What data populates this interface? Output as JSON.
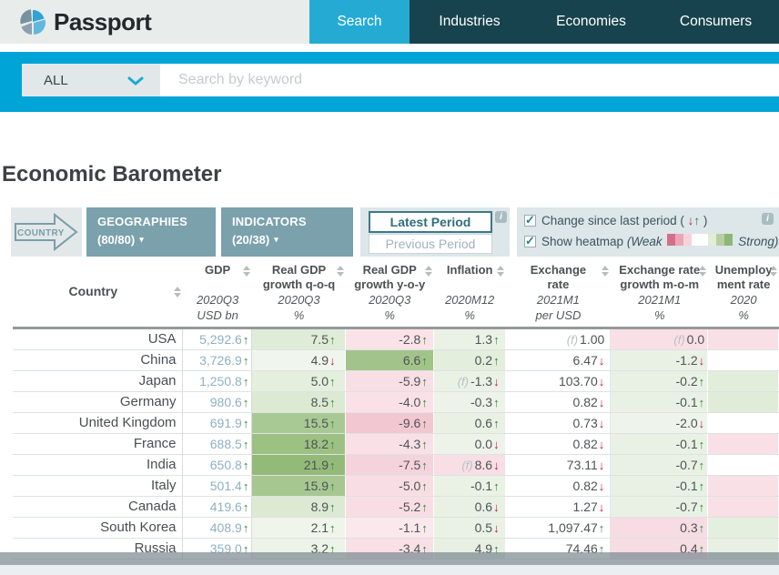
{
  "brand": {
    "name": "Passport"
  },
  "nav": {
    "tabs": [
      {
        "label": "Search",
        "active": true
      },
      {
        "label": "Industries",
        "active": false
      },
      {
        "label": "Economies",
        "active": false
      },
      {
        "label": "Consumers",
        "active": false
      }
    ]
  },
  "search": {
    "filter_value": "ALL",
    "placeholder": "Search by keyword"
  },
  "page": {
    "title": "Economic Barometer"
  },
  "controls": {
    "country_flow_label": "COUNTRY",
    "geographies_label": "GEOGRAPHIES",
    "geographies_count": "(80/80)",
    "indicators_label": "INDICATORS",
    "indicators_count": "(20/38)",
    "latest_period_label": "Latest Period",
    "previous_period_label": "Previous Period",
    "selected_period": "Latest Period",
    "change_checkbox": {
      "checked": true,
      "label": "Change since last period (",
      "suffix": ")"
    },
    "heatmap_checkbox": {
      "checked": true,
      "label": "Show heatmap",
      "weak": "(Weak",
      "strong": "Strong)"
    },
    "heatmap_legend_colors": [
      "#d76e88",
      "#eaa6b6",
      "#f6d3db",
      "#ffffff",
      "#ffffff",
      "#e2ecd9",
      "#b5cfa3",
      "#8cb777"
    ]
  },
  "icons": {
    "info": "i",
    "check": "✓",
    "up_arrow": "↑",
    "down_arrow": "↓",
    "caret_down": "▾"
  },
  "colors": {
    "accent_cyan": "#00a4d7",
    "nav_dark": "#17434e",
    "tab_active": "#25abd3",
    "button_teal": "#7aa1ac",
    "up_green": "#2e8a33",
    "down_red": "#c11744",
    "gdp_value": "#8db0c3"
  },
  "table": {
    "forecast_prefix": "(f)",
    "columns": [
      {
        "key": "country",
        "lines": [
          "Country"
        ],
        "period": "",
        "unit": ""
      },
      {
        "key": "gdp",
        "lines": [
          "GDP"
        ],
        "period": "2020Q3",
        "unit": "USD bn"
      },
      {
        "key": "qoq",
        "lines": [
          "Real GDP",
          "growth q-o-q"
        ],
        "period": "2020Q3",
        "unit": "%"
      },
      {
        "key": "yoy",
        "lines": [
          "Real GDP",
          "growth y-o-y"
        ],
        "period": "2020Q3",
        "unit": "%"
      },
      {
        "key": "inflation",
        "lines": [
          "Inflation"
        ],
        "period": "2020M12",
        "unit": "%"
      },
      {
        "key": "fx",
        "lines": [
          "Exchange",
          "rate"
        ],
        "period": "2021M1",
        "unit": "per USD"
      },
      {
        "key": "fx_mom",
        "lines": [
          "Exchange rate",
          "growth m-o-m"
        ],
        "period": "2021M1",
        "unit": "%"
      },
      {
        "key": "unemployment",
        "lines": [
          "Unemploy",
          "ment rate"
        ],
        "period": "2020",
        "unit": "%"
      }
    ],
    "rows": [
      {
        "country": "USA",
        "gdp": {
          "v": "5,292.6",
          "a": "up"
        },
        "qoq": {
          "v": "7.5",
          "a": "up",
          "bg": "#dfecd7"
        },
        "yoy": {
          "v": "-2.8",
          "a": "up",
          "bg": "#f9e2e8"
        },
        "inflation": {
          "v": "1.3",
          "a": "up",
          "bg": "#eaf2e6"
        },
        "fx": {
          "v": "1.00",
          "f": true
        },
        "fx_mom": {
          "v": "0.0",
          "f": true,
          "bg": "#f8e0e6"
        },
        "unemployment": {
          "v": "",
          "bg": "#f8e0e6"
        }
      },
      {
        "country": "China",
        "gdp": {
          "v": "3,726.9",
          "a": "up"
        },
        "qoq": {
          "v": "4.9",
          "a": "down",
          "bg": "#f0f6ed"
        },
        "yoy": {
          "v": "6.6",
          "a": "up",
          "bg": "#a2c48a"
        },
        "inflation": {
          "v": "0.2",
          "a": "up",
          "bg": "#e4eedd"
        },
        "fx": {
          "v": "6.47",
          "a": "down"
        },
        "fx_mom": {
          "v": "-1.2",
          "a": "down",
          "bg": "#e9f1e5"
        },
        "unemployment": {
          "v": "",
          "bg": "#ffffff"
        }
      },
      {
        "country": "Japan",
        "gdp": {
          "v": "1,250.8",
          "a": "up"
        },
        "qoq": {
          "v": "5.0",
          "a": "up",
          "bg": "#e4efdd"
        },
        "yoy": {
          "v": "-5.9",
          "a": "up",
          "bg": "#f8dee5"
        },
        "inflation": {
          "v": "-1.3",
          "a": "down",
          "f": true,
          "bg": "#eaf2e6"
        },
        "fx": {
          "v": "103.70",
          "a": "down"
        },
        "fx_mom": {
          "v": "-0.2",
          "a": "up",
          "bg": "#e9f1e5"
        },
        "unemployment": {
          "v": "",
          "bg": "#e2edda"
        }
      },
      {
        "country": "Germany",
        "gdp": {
          "v": "980.6",
          "a": "up"
        },
        "qoq": {
          "v": "8.5",
          "a": "up",
          "bg": "#dcead3"
        },
        "yoy": {
          "v": "-4.0",
          "a": "up",
          "bg": "#f9e1e7"
        },
        "inflation": {
          "v": "-0.3",
          "a": "up",
          "bg": "#edf3e9"
        },
        "fx": {
          "v": "0.82",
          "a": "down"
        },
        "fx_mom": {
          "v": "-0.1",
          "a": "up",
          "bg": "#e9f1e5"
        },
        "unemployment": {
          "v": "",
          "bg": "#e0ecd8"
        }
      },
      {
        "country": "United Kingdom",
        "gdp": {
          "v": "691.9",
          "a": "up"
        },
        "qoq": {
          "v": "15.5",
          "a": "up",
          "bg": "#a9c994"
        },
        "yoy": {
          "v": "-9.6",
          "a": "up",
          "bg": "#f3c7d2"
        },
        "inflation": {
          "v": "0.6",
          "a": "up",
          "bg": "#e8f1e4"
        },
        "fx": {
          "v": "0.73",
          "a": "down"
        },
        "fx_mom": {
          "v": "-2.0",
          "a": "down",
          "bg": "#eef4eb"
        },
        "unemployment": {
          "v": "",
          "bg": "#ffffff"
        }
      },
      {
        "country": "France",
        "gdp": {
          "v": "688.5",
          "a": "up"
        },
        "qoq": {
          "v": "18.2",
          "a": "up",
          "bg": "#9dc083"
        },
        "yoy": {
          "v": "-4.3",
          "a": "up",
          "bg": "#f9e0e6"
        },
        "inflation": {
          "v": "0.0",
          "a": "down",
          "bg": "#edf3e9"
        },
        "fx": {
          "v": "0.82",
          "a": "down"
        },
        "fx_mom": {
          "v": "-0.1",
          "a": "up",
          "bg": "#e9f1e5"
        },
        "unemployment": {
          "v": "",
          "bg": "#f8e0e6"
        }
      },
      {
        "country": "India",
        "gdp": {
          "v": "650.8",
          "a": "up"
        },
        "qoq": {
          "v": "21.9",
          "a": "up",
          "bg": "#93ba78"
        },
        "yoy": {
          "v": "-7.5",
          "a": "up",
          "bg": "#f5d3dc"
        },
        "inflation": {
          "v": "8.6",
          "a": "down",
          "f": true,
          "bg": "#f8dee5"
        },
        "fx": {
          "v": "73.11",
          "a": "down"
        },
        "fx_mom": {
          "v": "-0.7",
          "a": "up",
          "bg": "#e9f1e5"
        },
        "unemployment": {
          "v": "",
          "bg": "#ffffff"
        }
      },
      {
        "country": "Italy",
        "gdp": {
          "v": "501.4",
          "a": "up"
        },
        "qoq": {
          "v": "15.9",
          "a": "up",
          "bg": "#a7c791"
        },
        "yoy": {
          "v": "-5.0",
          "a": "up",
          "bg": "#f8dee4"
        },
        "inflation": {
          "v": "-0.1",
          "a": "up",
          "bg": "#eaf2e6"
        },
        "fx": {
          "v": "0.82",
          "a": "down"
        },
        "fx_mom": {
          "v": "-0.1",
          "a": "up",
          "bg": "#e9f1e5"
        },
        "unemployment": {
          "v": "",
          "bg": "#f8e0e6"
        }
      },
      {
        "country": "Canada",
        "gdp": {
          "v": "419.6",
          "a": "up"
        },
        "qoq": {
          "v": "8.9",
          "a": "up",
          "bg": "#dcead3"
        },
        "yoy": {
          "v": "-5.2",
          "a": "up",
          "bg": "#f8dee4"
        },
        "inflation": {
          "v": "0.6",
          "a": "down",
          "bg": "#e9f1e5"
        },
        "fx": {
          "v": "1.27",
          "a": "down"
        },
        "fx_mom": {
          "v": "-0.7",
          "a": "up",
          "bg": "#e9f1e5"
        },
        "unemployment": {
          "v": "",
          "bg": "#f8e0e6"
        }
      },
      {
        "country": "South Korea",
        "gdp": {
          "v": "408.9",
          "a": "up"
        },
        "qoq": {
          "v": "2.1",
          "a": "up",
          "bg": "#eff5eb"
        },
        "yoy": {
          "v": "-1.1",
          "a": "up",
          "bg": "#fae8ec"
        },
        "inflation": {
          "v": "0.5",
          "a": "down",
          "bg": "#eaf2e6"
        },
        "fx": {
          "v": "1,097.47",
          "a": "up"
        },
        "fx_mom": {
          "v": "0.3",
          "a": "up",
          "bg": "#f7dce3"
        },
        "unemployment": {
          "v": "",
          "bg": "#e5efdf"
        }
      },
      {
        "country": "Russia",
        "gdp": {
          "v": "359.0",
          "a": "up"
        },
        "qoq": {
          "v": "3.2",
          "a": "up",
          "bg": "#ecf3e7"
        },
        "yoy": {
          "v": "-3.4",
          "a": "up",
          "bg": "#f8e0e6"
        },
        "inflation": {
          "v": "4.9",
          "a": "up",
          "bg": "#e7f0e2"
        },
        "fx": {
          "v": "74.46",
          "a": "up"
        },
        "fx_mom": {
          "v": "0.4",
          "a": "up",
          "bg": "#f7dce3"
        },
        "unemployment": {
          "v": "",
          "bg": "#e7f0e2"
        }
      }
    ]
  }
}
